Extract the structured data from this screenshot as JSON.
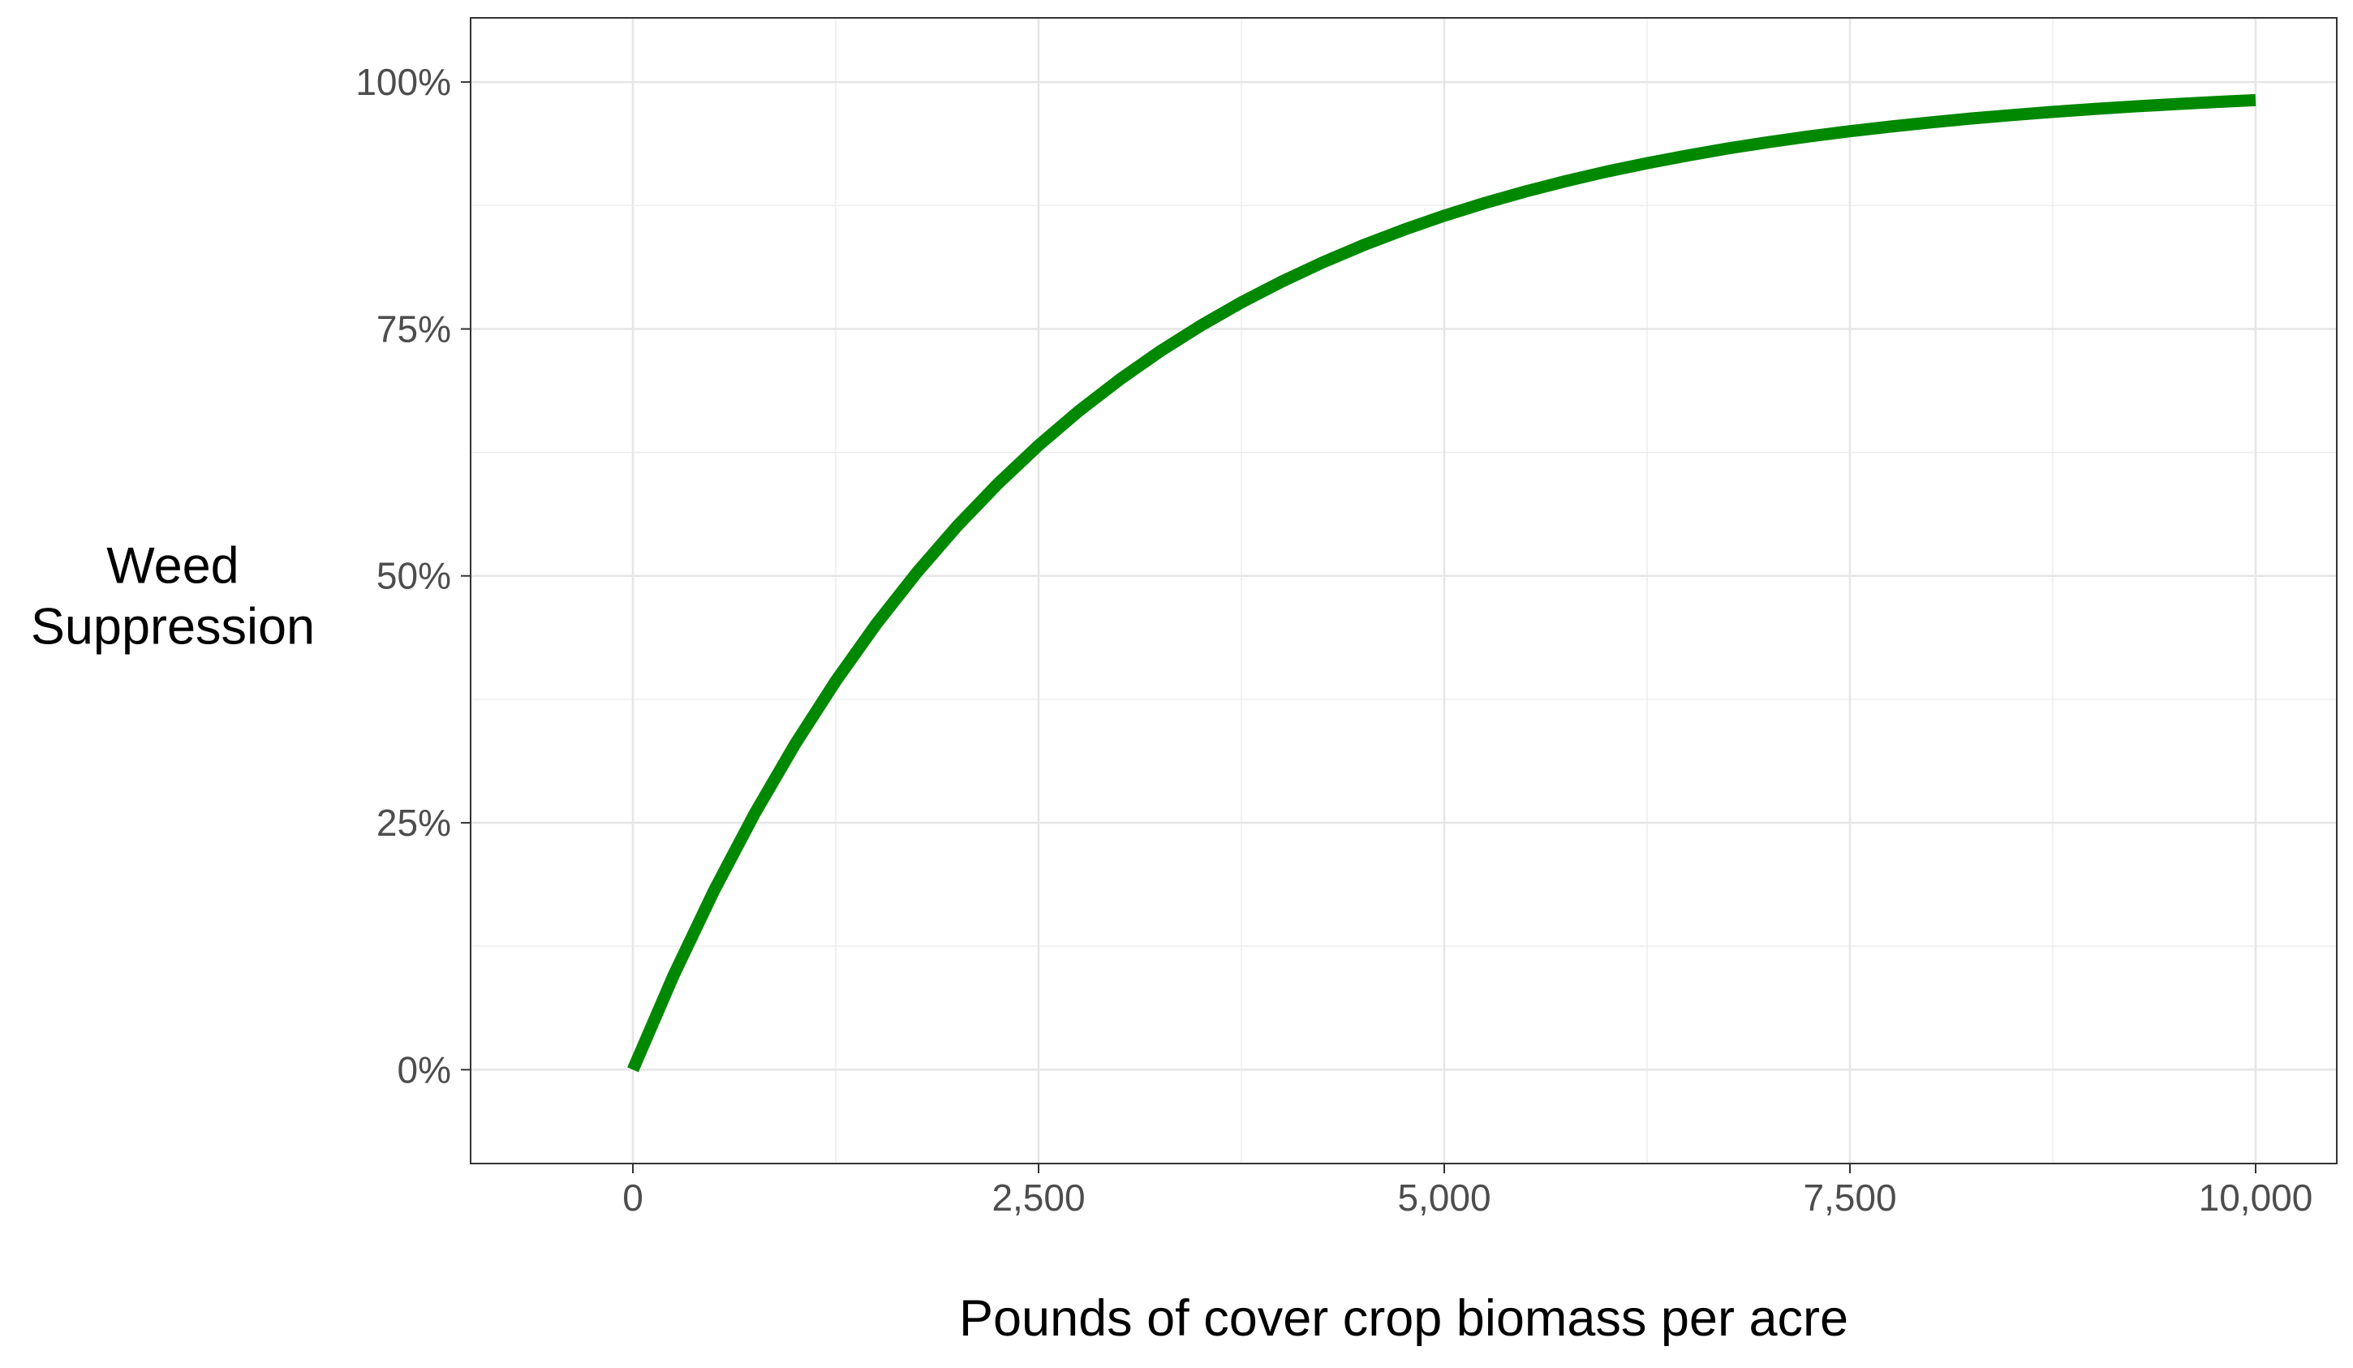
{
  "chart_data": {
    "type": "line",
    "title": "",
    "xlabel": "Pounds of cover crop biomass per acre",
    "ylabel": "Weed\nSuppression",
    "xlim": [
      -1000,
      10500
    ],
    "ylim": [
      -0.095,
      1.065
    ],
    "x_ticks": [
      0,
      2500,
      5000,
      7500,
      10000
    ],
    "x_tick_labels": [
      "0",
      "2,500",
      "5,000",
      "7,500",
      "10,000"
    ],
    "x_minor_ticks": [
      1250,
      3750,
      6250,
      8750
    ],
    "y_ticks": [
      0,
      0.25,
      0.5,
      0.75,
      1.0
    ],
    "y_tick_labels": [
      "0%",
      "25%",
      "50%",
      "75%",
      "100%"
    ],
    "y_minor_ticks": [
      0.125,
      0.375,
      0.625,
      0.875
    ],
    "grid": true,
    "legend": "none",
    "series": [
      {
        "color": "#008800",
        "x": [
          0,
          250,
          500,
          750,
          1000,
          1250,
          1500,
          1750,
          2000,
          2250,
          2500,
          2750,
          3000,
          3250,
          3500,
          3750,
          4000,
          4250,
          4500,
          4750,
          5000,
          5250,
          5500,
          5750,
          6000,
          6250,
          6500,
          6750,
          7000,
          7250,
          7500,
          7750,
          8000,
          8250,
          8500,
          8750,
          9000,
          9250,
          9500,
          9750,
          10000
        ],
        "values": [
          0,
          0.0952,
          0.1813,
          0.2592,
          0.3297,
          0.3935,
          0.4512,
          0.5034,
          0.5507,
          0.5934,
          0.6321,
          0.6671,
          0.6988,
          0.7275,
          0.7534,
          0.7769,
          0.7981,
          0.8173,
          0.8347,
          0.8504,
          0.8647,
          0.8775,
          0.8892,
          0.8997,
          0.9093,
          0.9179,
          0.9257,
          0.9328,
          0.9392,
          0.945,
          0.9502,
          0.9549,
          0.9592,
          0.9631,
          0.9666,
          0.9698,
          0.9727,
          0.9753,
          0.9776,
          0.9797,
          0.9817
        ]
      }
    ]
  }
}
